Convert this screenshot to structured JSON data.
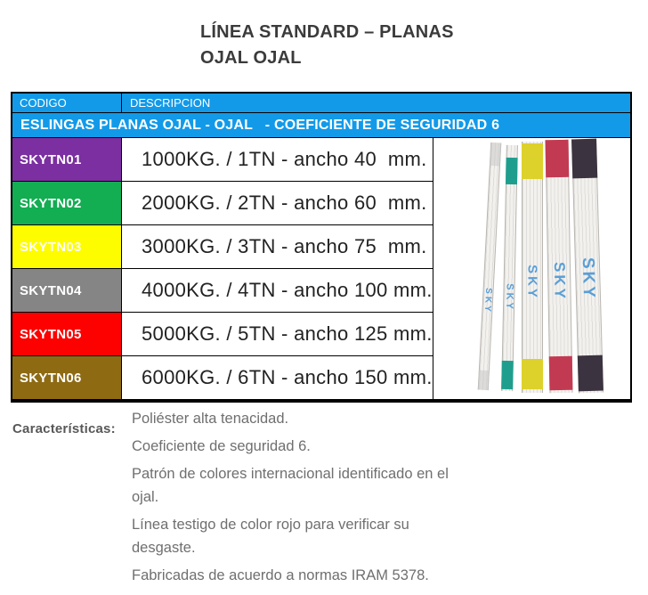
{
  "title": {
    "line1": "LÍNEA STANDARD – PLANAS",
    "line2": "OJAL OJAL"
  },
  "table": {
    "header_bg": "#129ae9",
    "col_headers": {
      "codigo": "CODIGO",
      "descripcion": "DESCRIPCION"
    },
    "banner": "ESLINGAS PLANAS OJAL - OJAL   - COEFICIENTE DE SEGURIDAD 6",
    "rows": [
      {
        "code": "SKYTN01",
        "color": "#7b2fa0",
        "desc": "1000KG. / 1TN - ancho 40  mm."
      },
      {
        "code": "SKYTN02",
        "color": "#13ad52",
        "desc": "2000KG. / 2TN - ancho 60  mm."
      },
      {
        "code": "SKYTN03",
        "color": "#fdfd00",
        "desc": "3000KG. / 3TN - ancho 75  mm."
      },
      {
        "code": "SKYTN04",
        "color": "#858585",
        "desc": "4000KG. / 4TN - ancho 100 mm."
      },
      {
        "code": "SKYTN05",
        "color": "#fc0100",
        "desc": "5000KG. / 5TN - ancho 125 mm."
      },
      {
        "code": "SKYTN06",
        "color": "#8e6b13",
        "desc": "6000KG. / 6TN - ancho 150 mm."
      }
    ]
  },
  "image": {
    "brand": "SKY",
    "brand_color": "#5b9fd6",
    "straps": [
      {
        "name": "sling-gray",
        "tip": "#c9c9c9"
      },
      {
        "name": "sling-teal",
        "tip": "#1f9e8e"
      },
      {
        "name": "sling-yellow",
        "tip": "#ddd12b"
      },
      {
        "name": "sling-red",
        "tip": "#c23a52"
      },
      {
        "name": "sling-dark",
        "tip": "#3c3340"
      }
    ]
  },
  "characteristics": {
    "label": "Características:",
    "items": [
      "Poliéster alta tenacidad.",
      "Coeficiente de seguridad 6.",
      "Patrón de colores internacional identificado en el\nojal.",
      "Línea testigo de color rojo para verificar su\ndesgaste.",
      "Fabricadas de acuerdo a normas IRAM 5378."
    ]
  }
}
